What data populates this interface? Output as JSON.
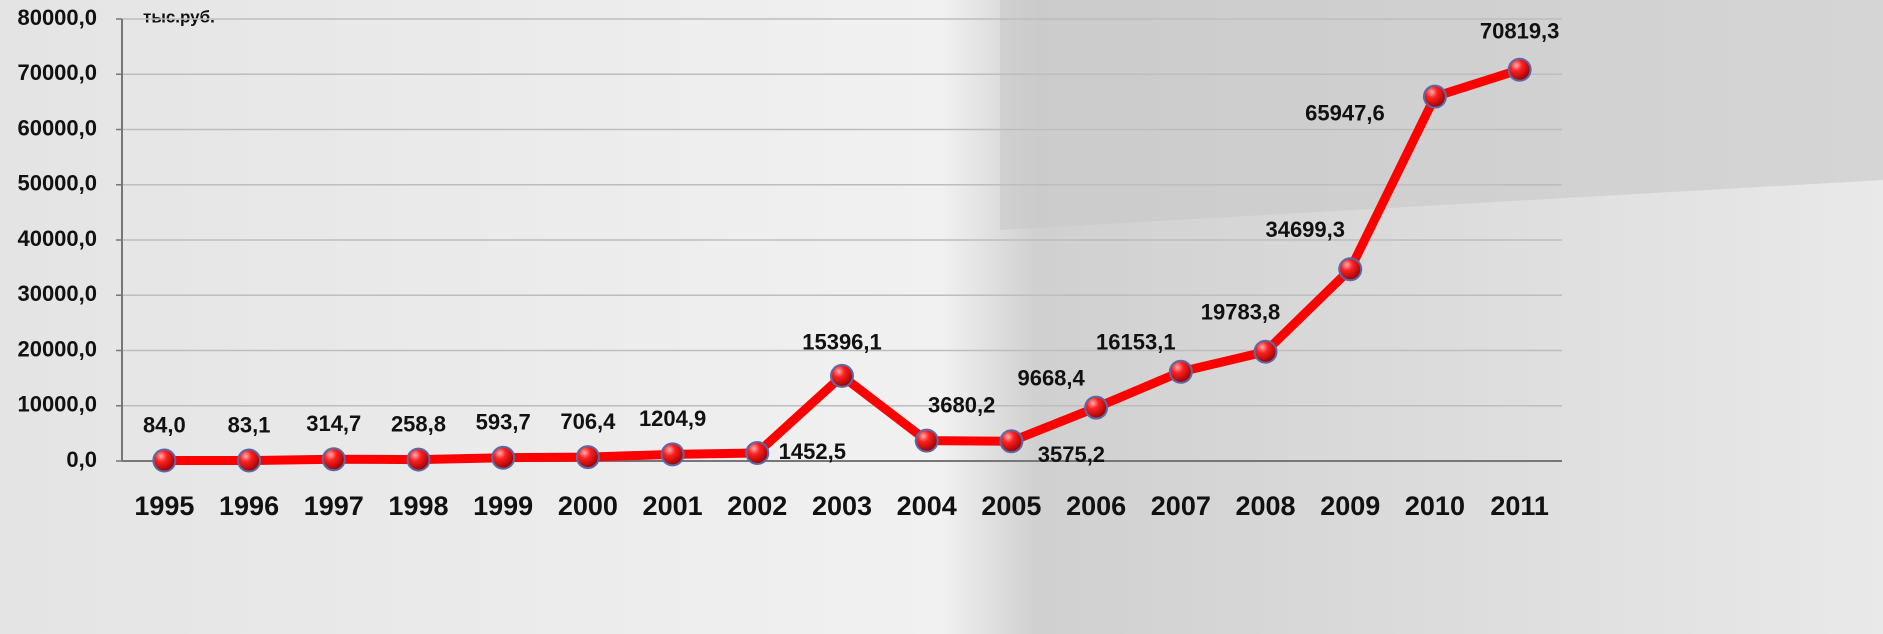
{
  "chart_data": {
    "type": "line",
    "y_label": "тыс.руб.",
    "categories": [
      "1995",
      "1996",
      "1997",
      "1998",
      "1999",
      "2000",
      "2001",
      "2002",
      "2003",
      "2004",
      "2005",
      "2006",
      "2007",
      "2008",
      "2009",
      "2010",
      "2011"
    ],
    "values": [
      84.0,
      83.1,
      314.7,
      258.8,
      593.7,
      706.4,
      1204.9,
      1452.5,
      15396.1,
      3680.2,
      3575.2,
      9668.4,
      16153.1,
      19783.8,
      34699.3,
      65947.6,
      70819.3
    ],
    "value_labels": [
      "84,0",
      "83,1",
      "314,7",
      "258,8",
      "593,7",
      "706,4",
      "1204,9",
      "1452,5",
      "15396,1",
      "3680,2",
      "3575,2",
      "9668,4",
      "16153,1",
      "19783,8",
      "34699,3",
      "65947,6",
      "70819,3"
    ],
    "color": "#ff0000",
    "ylim": [
      0,
      80000
    ],
    "yticks": [
      {
        "value": 0,
        "label": "0,0"
      },
      {
        "value": 10000,
        "label": "10000,0"
      },
      {
        "value": 20000,
        "label": "20000,0"
      },
      {
        "value": 30000,
        "label": "30000,0"
      },
      {
        "value": 40000,
        "label": "40000,0"
      },
      {
        "value": 50000,
        "label": "50000,0"
      },
      {
        "value": 60000,
        "label": "60000,0"
      },
      {
        "value": 70000,
        "label": "70000,0"
      },
      {
        "value": 80000,
        "label": "80000,0"
      }
    ],
    "grid": true
  }
}
